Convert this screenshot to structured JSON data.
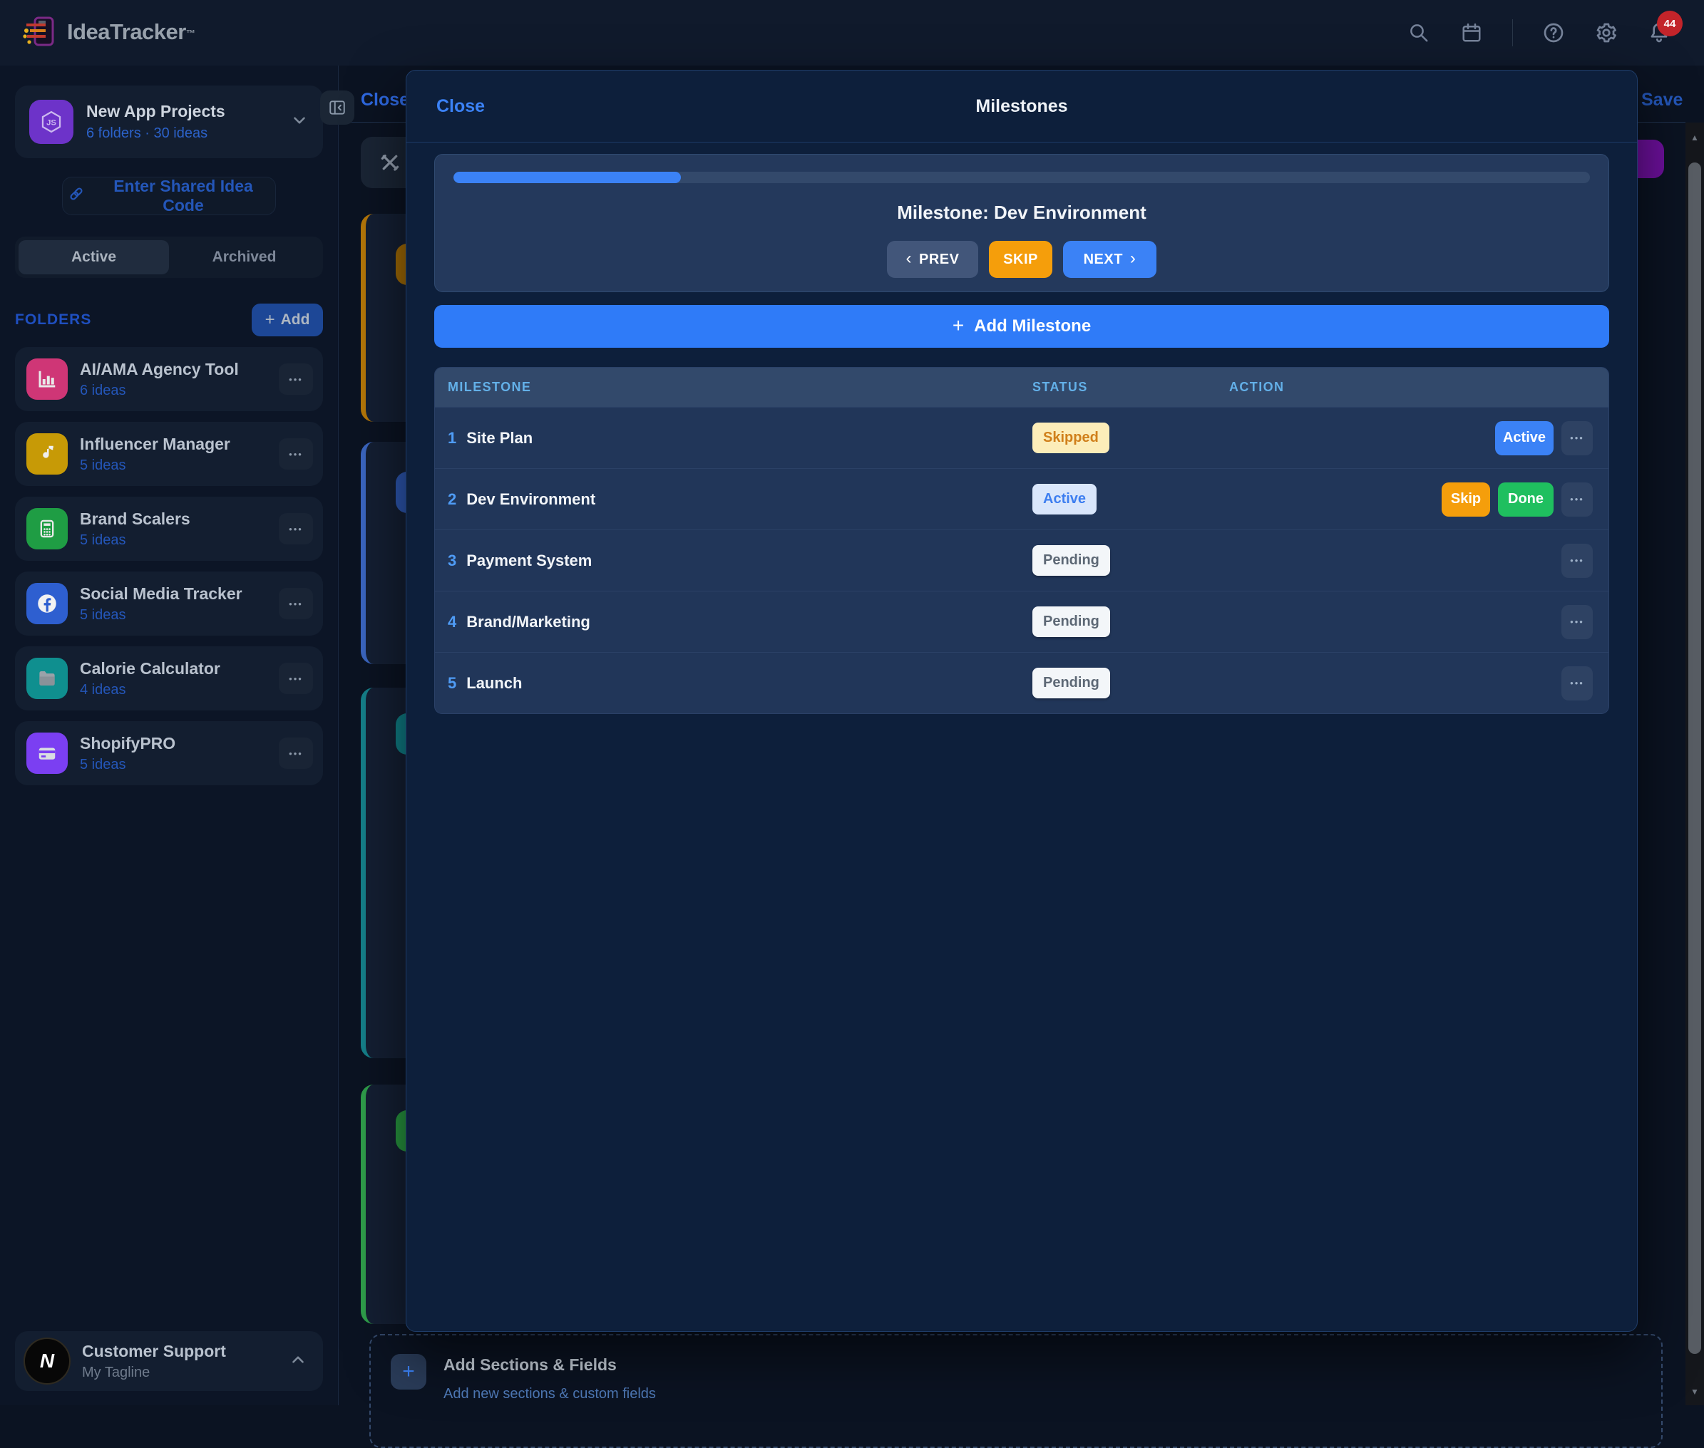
{
  "header": {
    "app_name": "IdeaTracker",
    "tm": "™",
    "notification_count": "44"
  },
  "sidebar": {
    "workspace": {
      "name": "New App Projects",
      "meta": "6 folders · 30 ideas"
    },
    "shared_code_button": "Enter Shared Idea Code",
    "tabs": [
      {
        "label": "Active"
      },
      {
        "label": "Archived"
      }
    ],
    "folders_label": "FOLDERS",
    "add_button_label": "Add",
    "folders": [
      {
        "name": "AI/AMA Agency Tool",
        "count": "6 ideas",
        "color": "#cf3676",
        "icon": "bar-chart-icon"
      },
      {
        "name": "Influencer Manager",
        "count": "5 ideas",
        "color": "#c79a06",
        "icon": "music-note-icon"
      },
      {
        "name": "Brand Scalers",
        "count": "5 ideas",
        "color": "#1f9d44",
        "icon": "calculator-icon"
      },
      {
        "name": "Social Media Tracker",
        "count": "5 ideas",
        "color": "#2e5fd0",
        "icon": "facebook-icon"
      },
      {
        "name": "Calorie Calculator",
        "count": "4 ideas",
        "color": "#0f8f8f",
        "icon": "folder-icon"
      },
      {
        "name": "ShopifyPRO",
        "count": "5 ideas",
        "color": "#7b3ff2",
        "icon": "credit-card-icon"
      }
    ],
    "user": {
      "initial": "N",
      "name": "Customer Support",
      "tagline": "My Tagline"
    }
  },
  "background_page": {
    "close_label": "Close",
    "save_label": "Save"
  },
  "modal": {
    "close_label": "Close",
    "title": "Milestones",
    "current": {
      "title": "Milestone: Dev Environment",
      "progress_percent": 20,
      "prev_label": "PREV",
      "skip_label": "SKIP",
      "next_label": "NEXT"
    },
    "add_button_label": "Add Milestone",
    "table": {
      "columns": [
        "MILESTONE",
        "STATUS",
        "ACTION"
      ],
      "rows": [
        {
          "num": "1",
          "name": "Site Plan",
          "status": "Skipped",
          "actions": [
            "Active"
          ]
        },
        {
          "num": "2",
          "name": "Dev Environment",
          "status": "Active",
          "actions": [
            "Skip",
            "Done"
          ]
        },
        {
          "num": "3",
          "name": "Payment System",
          "status": "Pending",
          "actions": []
        },
        {
          "num": "4",
          "name": "Brand/Marketing",
          "status": "Pending",
          "actions": []
        },
        {
          "num": "5",
          "name": "Launch",
          "status": "Pending",
          "actions": []
        }
      ]
    }
  },
  "footer": {
    "title": "Add Sections & Fields",
    "subtitle": "Add new sections & custom fields"
  },
  "colors": {
    "accent_blue": "#3b82f6",
    "orange": "#f59e0b",
    "green": "#1fbf5f",
    "badge_skipped_bg": "#fcedb9",
    "badge_skipped_text": "#d07f1a",
    "badge_active_bg": "#d9e6fb",
    "badge_pending_bg": "#f3f6f9",
    "notification_red": "#c3242a"
  }
}
